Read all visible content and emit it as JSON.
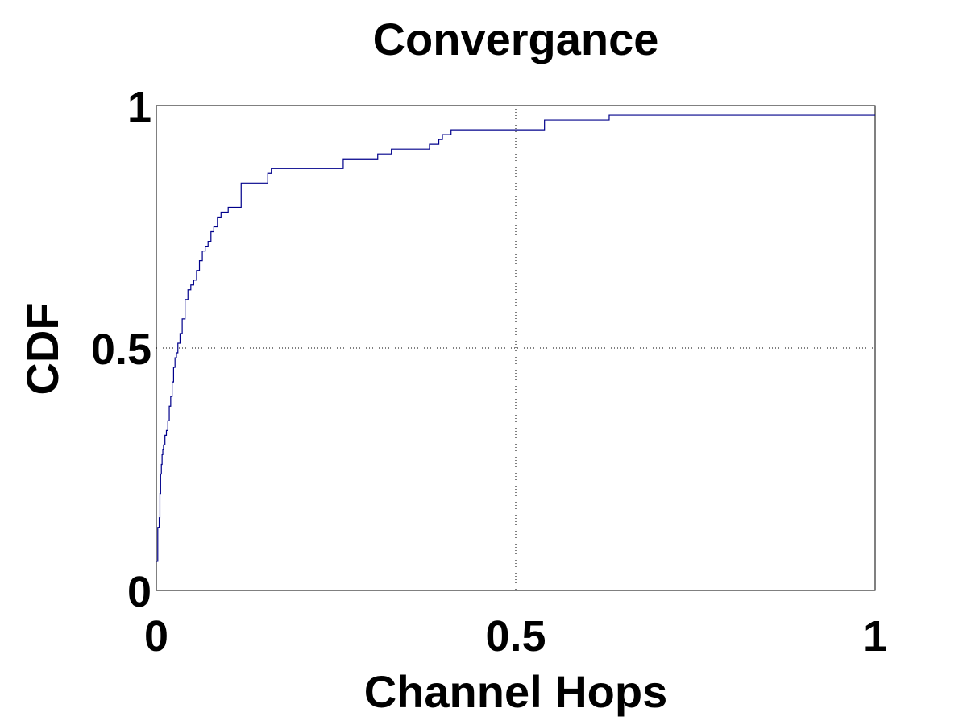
{
  "chart_data": {
    "type": "line",
    "title": "Convergance",
    "xlabel": "Channel Hops",
    "ylabel": "CDF",
    "xlim": [
      0,
      1
    ],
    "ylim": [
      0,
      1
    ],
    "xticks": [
      {
        "value": 0,
        "label": "0"
      },
      {
        "value": 0.5,
        "label": "0.5"
      },
      {
        "value": 1,
        "label": "1"
      }
    ],
    "yticks": [
      {
        "value": 0,
        "label": "0"
      },
      {
        "value": 0.5,
        "label": "0.5"
      },
      {
        "value": 1,
        "label": "1"
      }
    ],
    "grid": true,
    "color": "#00008b",
    "series": [
      {
        "step": true,
        "x": [
          0,
          0.002,
          0.004,
          0.005,
          0.006,
          0.007,
          0.008,
          0.009,
          0.01,
          0.012,
          0.014,
          0.016,
          0.018,
          0.02,
          0.022,
          0.024,
          0.026,
          0.028,
          0.03,
          0.033,
          0.036,
          0.04,
          0.044,
          0.048,
          0.052,
          0.056,
          0.06,
          0.064,
          0.068,
          0.072,
          0.076,
          0.08,
          0.085,
          0.09,
          0.1,
          0.118,
          0.15,
          0.155,
          0.16,
          0.2,
          0.26,
          0.308,
          0.327,
          0.38,
          0.393,
          0.398,
          0.41,
          0.54,
          0.63,
          1.0
        ],
        "y": [
          0.06,
          0.13,
          0.15,
          0.2,
          0.24,
          0.26,
          0.28,
          0.29,
          0.3,
          0.32,
          0.33,
          0.35,
          0.38,
          0.4,
          0.43,
          0.46,
          0.48,
          0.49,
          0.51,
          0.53,
          0.56,
          0.6,
          0.62,
          0.63,
          0.64,
          0.66,
          0.68,
          0.7,
          0.71,
          0.72,
          0.74,
          0.75,
          0.77,
          0.78,
          0.79,
          0.84,
          0.84,
          0.86,
          0.87,
          0.87,
          0.89,
          0.9,
          0.91,
          0.92,
          0.93,
          0.94,
          0.95,
          0.97,
          0.98,
          0.98
        ]
      }
    ]
  }
}
